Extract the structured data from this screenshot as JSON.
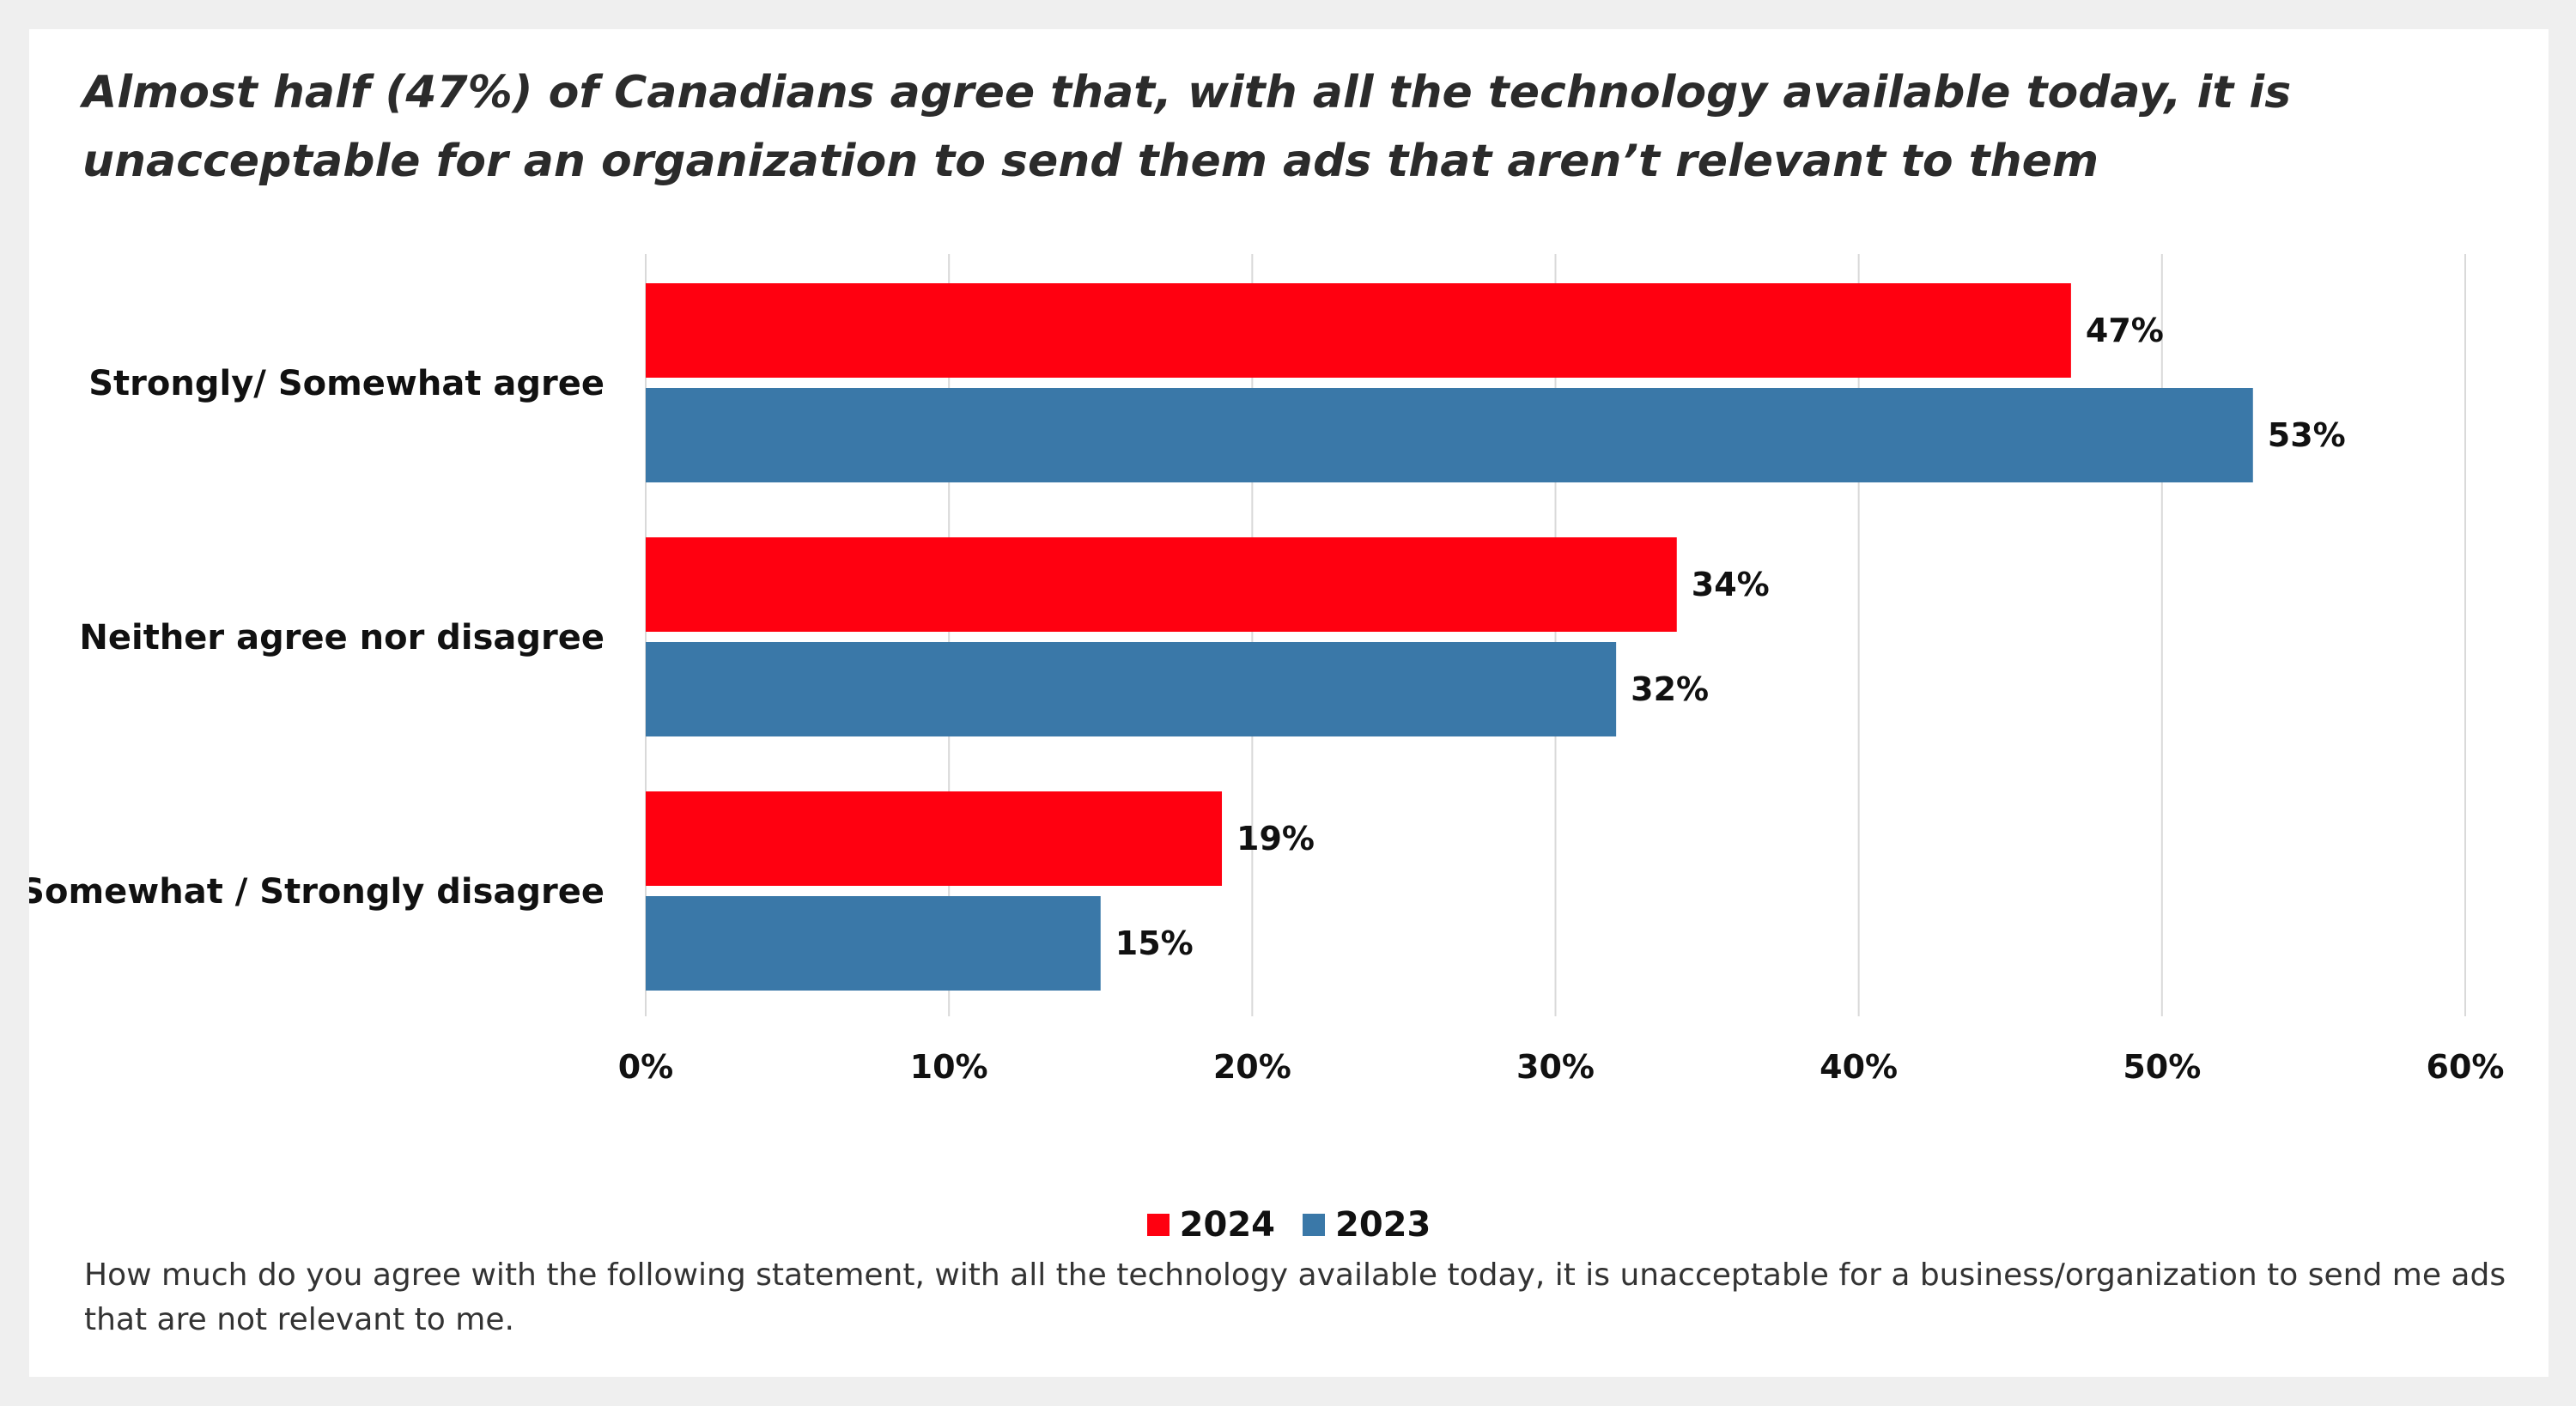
{
  "chart_data": {
    "type": "bar",
    "orientation": "horizontal",
    "title": "Almost half (47%) of Canadians agree that, with all the technology available today, it is unacceptable for an organization to send them ads that aren’t relevant to them",
    "categories": [
      "Strongly/ Somewhat agree",
      "Neither agree nor disagree",
      "Somewhat / Strongly disagree"
    ],
    "series": [
      {
        "name": "2024",
        "color": "#ff0010",
        "values": [
          47,
          34,
          19
        ],
        "labels": [
          "47%",
          "34%",
          "19%"
        ]
      },
      {
        "name": "2023",
        "color": "#3a78a8",
        "values": [
          53,
          32,
          15
        ],
        "labels": [
          "53%",
          "32%",
          "15%"
        ]
      }
    ],
    "xlim": [
      0,
      60
    ],
    "xticks": [
      {
        "value": 0,
        "label": "0%"
      },
      {
        "value": 10,
        "label": "10%"
      },
      {
        "value": 20,
        "label": "20%"
      },
      {
        "value": 30,
        "label": "30%"
      },
      {
        "value": 40,
        "label": "40%"
      },
      {
        "value": 50,
        "label": "50%"
      },
      {
        "value": 60,
        "label": "60%"
      }
    ],
    "grid": true,
    "legend_position": "bottom",
    "footnote": "How much do you agree with the following statement, with all the technology available today, it is unacceptable for a business/organization to send me ads that are not relevant to me."
  }
}
